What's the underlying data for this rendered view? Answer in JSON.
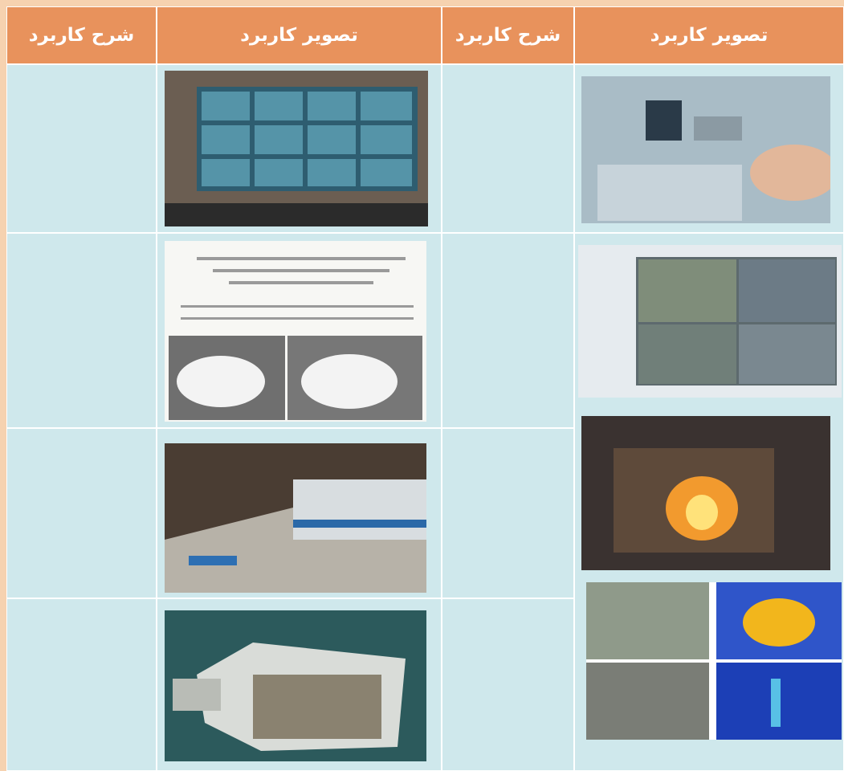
{
  "table": {
    "header": [
      "شرح کاربرد",
      "تصویر کاربرد",
      "شرح کاربرد",
      "تصویر کاربرد"
    ]
  }
}
